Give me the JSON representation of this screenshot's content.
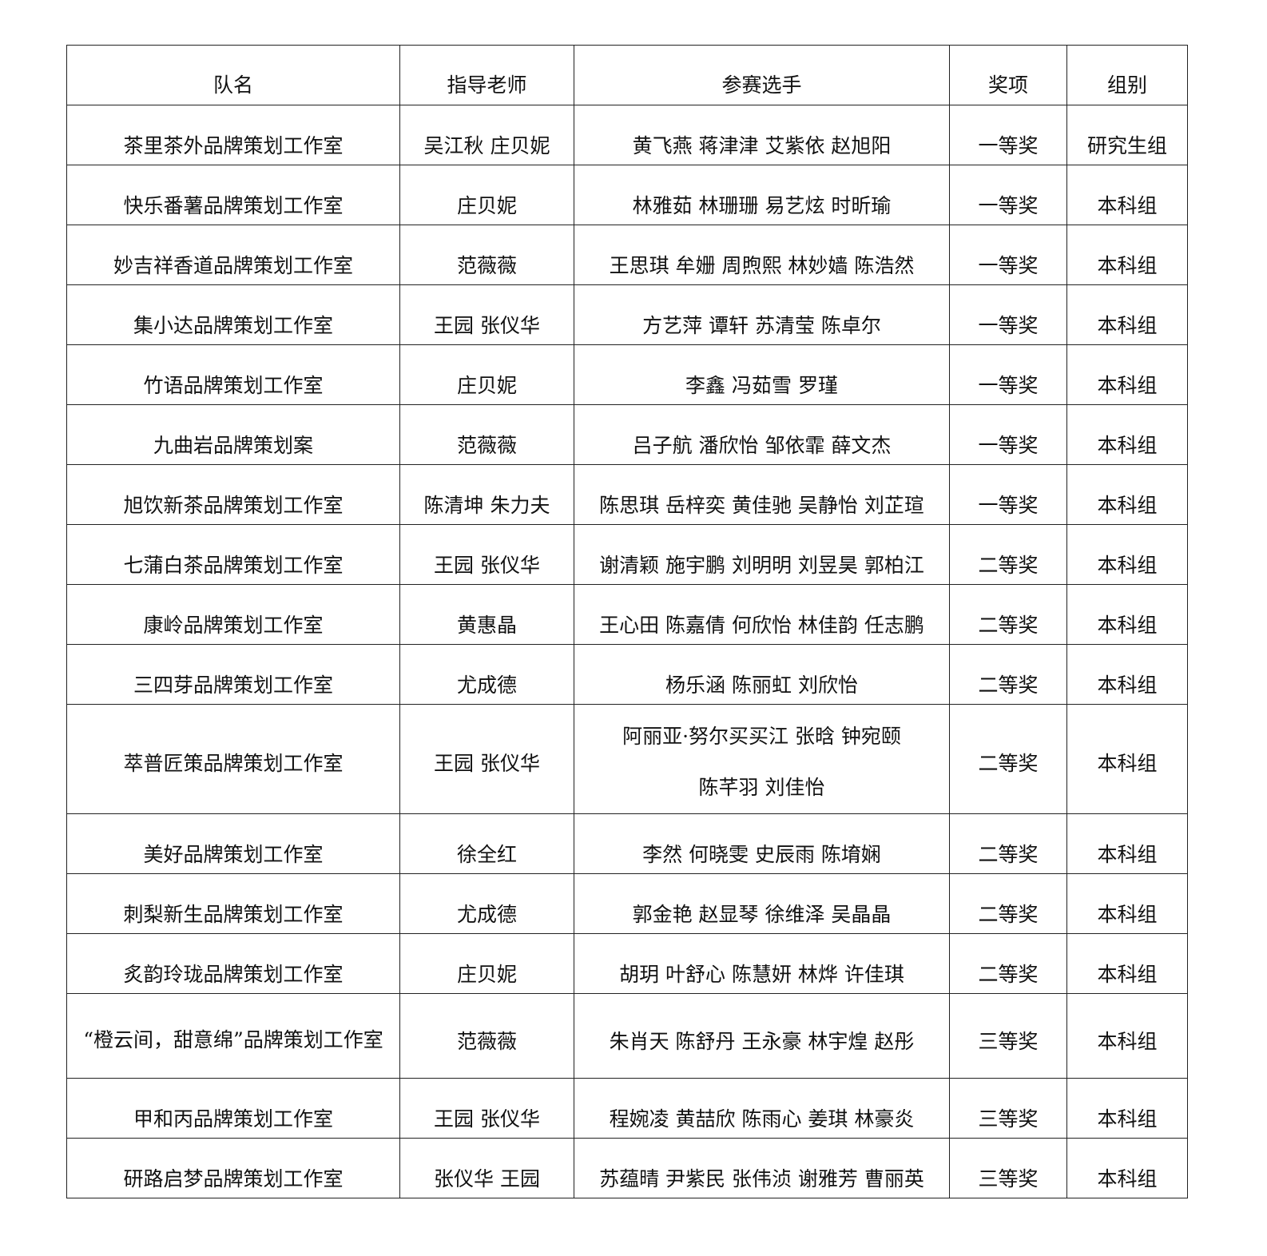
{
  "headers": [
    "队名",
    "指导老师",
    "参赛选手",
    "奖项",
    "组别"
  ],
  "rows": [
    {
      "team": "茶里茶外品牌策划工作室",
      "advisor": "吴江秋 庄贝妮",
      "members": [
        "黄飞燕 蒋津津 艾紫依 赵旭阳"
      ],
      "award": "一等奖",
      "group": "研究生组"
    },
    {
      "team": "快乐番薯品牌策划工作室",
      "advisor": "庄贝妮",
      "members": [
        "林雅茹 林珊珊 易艺炫 时昕瑜"
      ],
      "award": "一等奖",
      "group": "本科组"
    },
    {
      "team": "妙吉祥香道品牌策划工作室",
      "advisor": "范薇薇",
      "members": [
        "王思琪 牟姗 周煦熙 林妙嫱 陈浩然"
      ],
      "award": "一等奖",
      "group": "本科组"
    },
    {
      "team": "集小达品牌策划工作室",
      "advisor": "王园 张仪华",
      "members": [
        "方艺萍 谭轩 苏清莹 陈卓尔"
      ],
      "award": "一等奖",
      "group": "本科组"
    },
    {
      "team": "竹语品牌策划工作室",
      "advisor": "庄贝妮",
      "members": [
        "李鑫 冯茹雪 罗瑾"
      ],
      "award": "一等奖",
      "group": "本科组"
    },
    {
      "team": "九曲岩品牌策划案",
      "advisor": "范薇薇",
      "members": [
        "吕子航 潘欣怡 邹依霏 薛文杰"
      ],
      "award": "一等奖",
      "group": "本科组"
    },
    {
      "team": "旭饮新茶品牌策划工作室",
      "advisor": "陈清坤 朱力夫",
      "members": [
        "陈思琪 岳梓奕 黄佳驰 吴静怡 刘芷瑄"
      ],
      "award": "一等奖",
      "group": "本科组"
    },
    {
      "team": "七蒲白茶品牌策划工作室",
      "advisor": "王园 张仪华",
      "members": [
        "谢清颖 施宇鹏 刘明明 刘昱昊 郭柏江"
      ],
      "award": "二等奖",
      "group": "本科组"
    },
    {
      "team": "康岭品牌策划工作室",
      "advisor": "黄惠晶",
      "members": [
        "王心田 陈嘉倩 何欣怡 林佳韵 任志鹏"
      ],
      "award": "二等奖",
      "group": "本科组"
    },
    {
      "team": "三四芽品牌策划工作室",
      "advisor": "尤成德",
      "members": [
        "杨乐涵 陈丽虹 刘欣怡"
      ],
      "award": "二等奖",
      "group": "本科组"
    },
    {
      "team": "萃普匠策品牌策划工作室",
      "advisor": "王园 张仪华",
      "members": [
        "阿丽亚·努尔买买江 张晗 钟宛颐",
        "陈芊羽 刘佳怡"
      ],
      "award": "二等奖",
      "group": "本科组"
    },
    {
      "team": "美好品牌策划工作室",
      "advisor": "徐全红",
      "members": [
        "李然 何晓雯 史辰雨 陈堉娴"
      ],
      "award": "二等奖",
      "group": "本科组"
    },
    {
      "team": "刺梨新生品牌策划工作室",
      "advisor": "尤成德",
      "members": [
        "郭金艳 赵显琴 徐维泽 吴晶晶"
      ],
      "award": "二等奖",
      "group": "本科组"
    },
    {
      "team": "炙韵玲珑品牌策划工作室",
      "advisor": "庄贝妮",
      "members": [
        "胡玥 叶舒心 陈慧妍 林烨 许佳琪"
      ],
      "award": "二等奖",
      "group": "本科组"
    },
    {
      "team": "“橙云间，甜意绵”品牌策划工作室",
      "advisor": "范薇薇",
      "members": [
        "朱肖天 陈舒丹 王永豪 林宇煌 赵彤"
      ],
      "award": "三等奖",
      "group": "本科组"
    },
    {
      "team": "甲和丙品牌策划工作室",
      "advisor": "王园 张仪华",
      "members": [
        "程婉凌 黄喆欣 陈雨心 姜琪 林豪炎"
      ],
      "award": "三等奖",
      "group": "本科组"
    },
    {
      "team": "研路启梦品牌策划工作室",
      "advisor": "张仪华 王园",
      "members": [
        "苏蕴晴 尹紫民 张伟浈 谢雅芳 曹丽英"
      ],
      "award": "三等奖",
      "group": "本科组"
    }
  ]
}
